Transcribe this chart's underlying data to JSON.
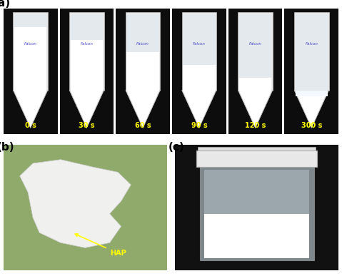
{
  "figure_width": 4.79,
  "figure_height": 3.87,
  "dpi": 100,
  "background_color": "#ffffff",
  "label_a": "(a)",
  "label_b": "(b)",
  "label_c": "(c)",
  "time_labels": [
    "0 s",
    "30 s",
    "60 s",
    "90 s",
    "120 s",
    "300 s"
  ],
  "time_label_color": "#ffff00",
  "time_label_fontsize": 7,
  "panel_label_fontsize": 11,
  "panel_label_fontweight": "bold",
  "hap_label": "HAP",
  "hap_label_color": "#ffff00",
  "hap_arrow_color": "#ffff00"
}
